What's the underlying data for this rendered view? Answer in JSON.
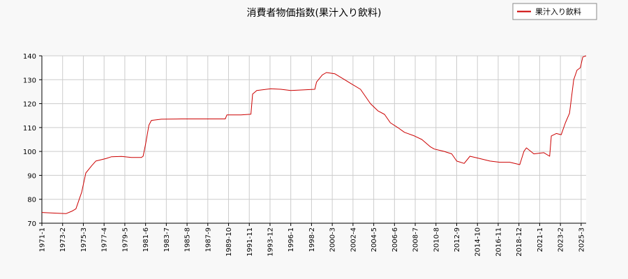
{
  "chart_data": {
    "type": "line",
    "title": "消費者物価指数(果汁入り飲料)",
    "xlabel": "",
    "ylabel": "",
    "ylim": [
      70,
      140
    ],
    "y_ticks": [
      70,
      80,
      90,
      100,
      110,
      120,
      130,
      140
    ],
    "x_range": [
      "1971-1",
      "2025-9"
    ],
    "x_tick_labels": [
      "1971-1",
      "1973-2",
      "1975-3",
      "1977-4",
      "1979-5",
      "1981-6",
      "1983-7",
      "1985-8",
      "1987-9",
      "1989-10",
      "1991-11",
      "1993-12",
      "1996-1",
      "1998-2",
      "2000-3",
      "2002-4",
      "2004-5",
      "2006-6",
      "2008-7",
      "2010-8",
      "2012-9",
      "2014-10",
      "2016-11",
      "2018-12",
      "2021-1",
      "2023-2",
      "2025-3"
    ],
    "grid": true,
    "legend_position": "top-right",
    "colors": {
      "series": "#cc0000",
      "grid": "#cccccc",
      "background": "#f8f8f8",
      "plot_background": "#ffffff"
    },
    "series": [
      {
        "name": "果汁入り飲料",
        "points": [
          [
            "1971-1",
            74.5
          ],
          [
            "1972-6",
            74.2
          ],
          [
            "1973-6",
            74.0
          ],
          [
            "1974-1",
            75.0
          ],
          [
            "1974-6",
            76.0
          ],
          [
            "1975-1",
            83.0
          ],
          [
            "1975-6",
            91.0
          ],
          [
            "1976-1",
            94.0
          ],
          [
            "1976-6",
            96.0
          ],
          [
            "1977-6",
            97.0
          ],
          [
            "1978-1",
            97.8
          ],
          [
            "1979-1",
            97.9
          ],
          [
            "1980-1",
            97.5
          ],
          [
            "1981-1",
            97.5
          ],
          [
            "1981-3",
            98.0
          ],
          [
            "1981-6",
            103.0
          ],
          [
            "1981-10",
            111.0
          ],
          [
            "1982-1",
            113.0
          ],
          [
            "1983-1",
            113.5
          ],
          [
            "1985-1",
            113.6
          ],
          [
            "1987-1",
            113.6
          ],
          [
            "1989-6",
            113.6
          ],
          [
            "1989-8",
            115.3
          ],
          [
            "1991-1",
            115.3
          ],
          [
            "1992-1",
            115.6
          ],
          [
            "1992-3",
            124.0
          ],
          [
            "1992-8",
            125.5
          ],
          [
            "1994-1",
            126.2
          ],
          [
            "1995-1",
            126.0
          ],
          [
            "1996-1",
            125.5
          ],
          [
            "1997-6",
            125.8
          ],
          [
            "1998-6",
            126.0
          ],
          [
            "1998-8",
            129.0
          ],
          [
            "1999-3",
            132.0
          ],
          [
            "1999-8",
            133.0
          ],
          [
            "2000-6",
            132.5
          ],
          [
            "2001-6",
            130.0
          ],
          [
            "2002-1",
            128.5
          ],
          [
            "2003-1",
            126.0
          ],
          [
            "2004-1",
            120.0
          ],
          [
            "2004-10",
            117.0
          ],
          [
            "2005-6",
            115.5
          ],
          [
            "2006-1",
            112.0
          ],
          [
            "2006-10",
            110.0
          ],
          [
            "2007-6",
            108.0
          ],
          [
            "2008-6",
            106.5
          ],
          [
            "2009-3",
            105.0
          ],
          [
            "2010-1",
            102.0
          ],
          [
            "2010-6",
            101.0
          ],
          [
            "2011-6",
            100.0
          ],
          [
            "2012-3",
            99.0
          ],
          [
            "2012-9",
            96.0
          ],
          [
            "2013-6",
            95.0
          ],
          [
            "2014-1",
            98.0
          ],
          [
            "2015-1",
            97.0
          ],
          [
            "2016-1",
            96.0
          ],
          [
            "2017-1",
            95.5
          ],
          [
            "2018-1",
            95.5
          ],
          [
            "2019-1",
            94.5
          ],
          [
            "2019-6",
            100.0
          ],
          [
            "2019-9",
            101.5
          ],
          [
            "2020-6",
            99.0
          ],
          [
            "2021-6",
            99.5
          ],
          [
            "2022-1",
            98.0
          ],
          [
            "2022-3",
            106.5
          ],
          [
            "2022-9",
            107.5
          ],
          [
            "2023-3",
            107.0
          ],
          [
            "2023-8",
            112.0
          ],
          [
            "2024-1",
            116.0
          ],
          [
            "2024-6",
            130.0
          ],
          [
            "2024-10",
            134.0
          ],
          [
            "2025-2",
            135.0
          ],
          [
            "2025-5",
            139.5
          ],
          [
            "2025-9",
            140.0
          ]
        ]
      }
    ]
  }
}
